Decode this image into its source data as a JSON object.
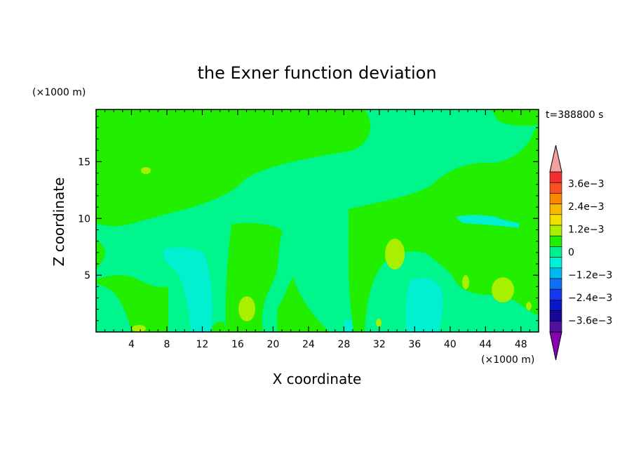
{
  "chart_data": {
    "type": "heatmap",
    "title": "the Exner function deviation",
    "xlabel": "X coordinate",
    "ylabel": "Z coordinate",
    "x_unit": "(×1000 m)",
    "y_unit": "(×1000 m)",
    "time_label": "t=388800 s",
    "xlim": [
      0,
      50
    ],
    "ylim": [
      0,
      19.6
    ],
    "x_ticks": [
      4,
      8,
      12,
      16,
      20,
      24,
      28,
      32,
      36,
      40,
      44,
      48
    ],
    "y_ticks": [
      5,
      10,
      15
    ],
    "colorbar": {
      "tick_labels": [
        "3.6e−3",
        "2.4e−3",
        "1.2e−3",
        "0",
        "−1.2e−3",
        "−2.4e−3",
        "−3.6e−3"
      ],
      "tick_values": [
        0.0036,
        0.0024,
        0.0012,
        0,
        -0.0012,
        -0.0024,
        -0.0036
      ],
      "levels_top_to_bottom": [
        0.0042,
        0.0036,
        0.003,
        0.0024,
        0.0018,
        0.0012,
        0.0006,
        0,
        -0.0006,
        -0.0012,
        -0.0018,
        -0.0024,
        -0.003,
        -0.0036,
        -0.0042
      ],
      "colors_top_to_bottom": [
        "#f4a0a0",
        "#f03030",
        "#f85020",
        "#fc8800",
        "#f8b800",
        "#f0e000",
        "#a8f000",
        "#20f000",
        "#00f090",
        "#00f0d8",
        "#00b8f0",
        "#1070f0",
        "#1838f0",
        "#0818c8",
        "#180898",
        "#5010a0",
        "#8800b0"
      ]
    },
    "colors": {
      "pos_small": "#22ee00",
      "zero_neg": "#00f58c",
      "neg_small": "#00f0d0",
      "pos_mid": "#a8f000"
    }
  }
}
